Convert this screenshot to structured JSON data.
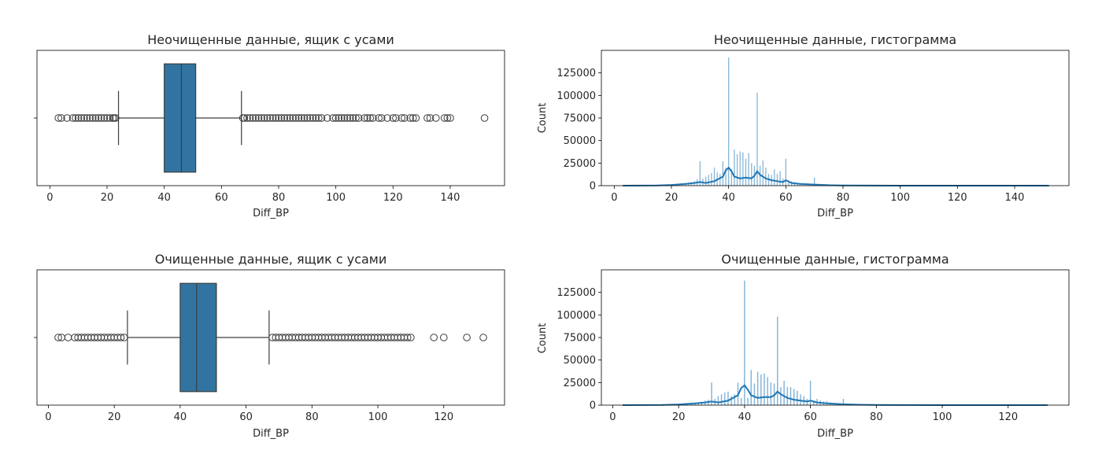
{
  "colors": {
    "box_fill": "#3274a1",
    "line": "#3d3d3d",
    "hist": "#1f77b4"
  },
  "chart_data": [
    {
      "type": "boxplot",
      "title": "Неочищенные данные, ящик с усами",
      "xlabel": "Diff_BP",
      "ylabel": "",
      "xlim": [
        -4.5,
        159
      ],
      "xticks": [
        0,
        20,
        40,
        60,
        80,
        100,
        120,
        140
      ],
      "box": {
        "whisker_low": 24,
        "q1": 40,
        "median": 46,
        "q3": 51,
        "whisker_high": 67
      },
      "outliers_low": [
        3,
        4,
        6,
        8,
        9,
        10,
        11,
        12,
        13,
        14,
        15,
        16,
        17,
        18,
        19,
        20,
        21,
        22,
        22.5,
        23
      ],
      "outliers_high": [
        67.5,
        68,
        69,
        70,
        71,
        72,
        73,
        74,
        75,
        76,
        77,
        78,
        79,
        80,
        81,
        82,
        83,
        84,
        85,
        86,
        87,
        88,
        89,
        90,
        91,
        92,
        93,
        94,
        95,
        97,
        99,
        100,
        101,
        102,
        103,
        104,
        105,
        106,
        107,
        108,
        110,
        111,
        112,
        113,
        115,
        116,
        118,
        120,
        121,
        123,
        124,
        126,
        127,
        128,
        132,
        133,
        135,
        138,
        139,
        140,
        152
      ]
    },
    {
      "type": "histogram",
      "title": "Неочищенные данные, гистограмма",
      "xlabel": "Diff_BP",
      "ylabel": "Count",
      "xlim": [
        -4.5,
        159
      ],
      "ylim": [
        0,
        150000
      ],
      "xticks": [
        0,
        20,
        40,
        60,
        80,
        100,
        120,
        140
      ],
      "yticks": [
        0,
        25000,
        50000,
        75000,
        100000,
        125000
      ],
      "bars": [
        [
          22,
          1500
        ],
        [
          24,
          2500
        ],
        [
          25,
          3000
        ],
        [
          26,
          3500
        ],
        [
          27,
          4000
        ],
        [
          28,
          5000
        ],
        [
          29,
          7000
        ],
        [
          30,
          27000
        ],
        [
          31,
          8000
        ],
        [
          32,
          10000
        ],
        [
          33,
          12000
        ],
        [
          34,
          14000
        ],
        [
          35,
          20000
        ],
        [
          36,
          15000
        ],
        [
          37,
          13000
        ],
        [
          38,
          27000
        ],
        [
          39,
          20000
        ],
        [
          40,
          142000
        ],
        [
          41,
          18000
        ],
        [
          42,
          40000
        ],
        [
          43,
          35000
        ],
        [
          44,
          38000
        ],
        [
          45,
          37000
        ],
        [
          46,
          30000
        ],
        [
          47,
          36000
        ],
        [
          48,
          25000
        ],
        [
          49,
          22000
        ],
        [
          50,
          103000
        ],
        [
          51,
          22000
        ],
        [
          52,
          28000
        ],
        [
          53,
          20000
        ],
        [
          54,
          13000
        ],
        [
          55,
          12000
        ],
        [
          56,
          18000
        ],
        [
          57,
          13000
        ],
        [
          58,
          16000
        ],
        [
          59,
          8000
        ],
        [
          60,
          30000
        ],
        [
          61,
          6000
        ],
        [
          62,
          5000
        ],
        [
          63,
          4000
        ],
        [
          64,
          3500
        ],
        [
          65,
          3000
        ],
        [
          66,
          2500
        ],
        [
          67,
          2500
        ],
        [
          68,
          2000
        ],
        [
          70,
          9000
        ],
        [
          72,
          1200
        ],
        [
          75,
          1000
        ],
        [
          80,
          600
        ]
      ],
      "kde": [
        [
          3,
          0
        ],
        [
          15,
          200
        ],
        [
          20,
          800
        ],
        [
          25,
          2000
        ],
        [
          28,
          3000
        ],
        [
          30,
          4000
        ],
        [
          32,
          3000
        ],
        [
          35,
          5000
        ],
        [
          38,
          10000
        ],
        [
          39,
          17000
        ],
        [
          40,
          20000
        ],
        [
          41,
          16000
        ],
        [
          42,
          10000
        ],
        [
          44,
          8000
        ],
        [
          46,
          9000
        ],
        [
          48,
          8000
        ],
        [
          49,
          11000
        ],
        [
          50,
          16000
        ],
        [
          51,
          12000
        ],
        [
          53,
          8000
        ],
        [
          55,
          6000
        ],
        [
          57,
          5000
        ],
        [
          59,
          4000
        ],
        [
          60,
          6000
        ],
        [
          62,
          3000
        ],
        [
          65,
          2000
        ],
        [
          70,
          1200
        ],
        [
          75,
          500
        ],
        [
          80,
          200
        ],
        [
          90,
          80
        ],
        [
          100,
          30
        ],
        [
          152,
          0
        ]
      ]
    },
    {
      "type": "boxplot",
      "title": "Очищенные данные, ящик с усами",
      "xlabel": "Diff_BP",
      "ylabel": "",
      "xlim": [
        -3.45,
        138.45
      ],
      "xticks": [
        0,
        20,
        40,
        60,
        80,
        100,
        120
      ],
      "box": {
        "whisker_low": 24,
        "q1": 40,
        "median": 45,
        "q3": 51,
        "whisker_high": 67
      },
      "outliers_low": [
        3,
        4,
        6,
        8,
        9,
        10,
        11,
        12,
        13,
        14,
        15,
        16,
        17,
        18,
        19,
        20,
        21,
        22,
        23
      ],
      "outliers_high": [
        68,
        69,
        70,
        71,
        72,
        73,
        74,
        75,
        76,
        77,
        78,
        79,
        80,
        81,
        82,
        83,
        84,
        85,
        86,
        87,
        88,
        89,
        90,
        91,
        92,
        93,
        94,
        95,
        96,
        97,
        98,
        99,
        100,
        101,
        102,
        103,
        104,
        105,
        106,
        107,
        108,
        109,
        110,
        117,
        120,
        127,
        132
      ]
    },
    {
      "type": "histogram",
      "title": "Очищенные данные, гистограмма",
      "xlabel": "Diff_BP",
      "ylabel": "Count",
      "xlim": [
        -3.45,
        138.45
      ],
      "ylim": [
        0,
        150000
      ],
      "xticks": [
        0,
        20,
        40,
        60,
        80,
        100,
        120
      ],
      "yticks": [
        0,
        25000,
        50000,
        75000,
        100000,
        125000
      ],
      "bars": [
        [
          22,
          1500
        ],
        [
          24,
          2000
        ],
        [
          25,
          2500
        ],
        [
          26,
          3000
        ],
        [
          27,
          3500
        ],
        [
          28,
          5000
        ],
        [
          29,
          6000
        ],
        [
          30,
          25000
        ],
        [
          31,
          7000
        ],
        [
          32,
          10000
        ],
        [
          33,
          12000
        ],
        [
          34,
          14000
        ],
        [
          35,
          15000
        ],
        [
          36,
          10000
        ],
        [
          37,
          12000
        ],
        [
          38,
          25000
        ],
        [
          39,
          8000
        ],
        [
          40,
          138000
        ],
        [
          41,
          8000
        ],
        [
          42,
          39000
        ],
        [
          43,
          24000
        ],
        [
          44,
          37000
        ],
        [
          45,
          34000
        ],
        [
          46,
          35000
        ],
        [
          47,
          31000
        ],
        [
          48,
          25000
        ],
        [
          49,
          24000
        ],
        [
          50,
          98000
        ],
        [
          51,
          20000
        ],
        [
          52,
          27000
        ],
        [
          53,
          20000
        ],
        [
          54,
          20000
        ],
        [
          55,
          18000
        ],
        [
          56,
          16000
        ],
        [
          57,
          12000
        ],
        [
          58,
          10000
        ],
        [
          59,
          7000
        ],
        [
          60,
          27000
        ],
        [
          61,
          5000
        ],
        [
          62,
          7000
        ],
        [
          63,
          5000
        ],
        [
          64,
          4000
        ],
        [
          65,
          4500
        ],
        [
          66,
          3000
        ],
        [
          67,
          2500
        ],
        [
          68,
          2000
        ],
        [
          70,
          7000
        ],
        [
          72,
          1000
        ],
        [
          75,
          800
        ],
        [
          80,
          400
        ]
      ],
      "kde": [
        [
          3,
          0
        ],
        [
          15,
          300
        ],
        [
          20,
          800
        ],
        [
          25,
          2000
        ],
        [
          28,
          3000
        ],
        [
          30,
          4000
        ],
        [
          32,
          3000
        ],
        [
          35,
          5000
        ],
        [
          38,
          11000
        ],
        [
          39,
          19000
        ],
        [
          40,
          22000
        ],
        [
          41,
          17000
        ],
        [
          42,
          11000
        ],
        [
          44,
          8000
        ],
        [
          46,
          9000
        ],
        [
          48,
          9000
        ],
        [
          49,
          11000
        ],
        [
          50,
          15000
        ],
        [
          51,
          12000
        ],
        [
          53,
          8000
        ],
        [
          55,
          6000
        ],
        [
          57,
          5000
        ],
        [
          59,
          4000
        ],
        [
          60,
          5000
        ],
        [
          62,
          3000
        ],
        [
          65,
          2000
        ],
        [
          70,
          1000
        ],
        [
          75,
          400
        ],
        [
          80,
          150
        ],
        [
          90,
          60
        ],
        [
          100,
          20
        ],
        [
          132,
          0
        ]
      ]
    }
  ]
}
